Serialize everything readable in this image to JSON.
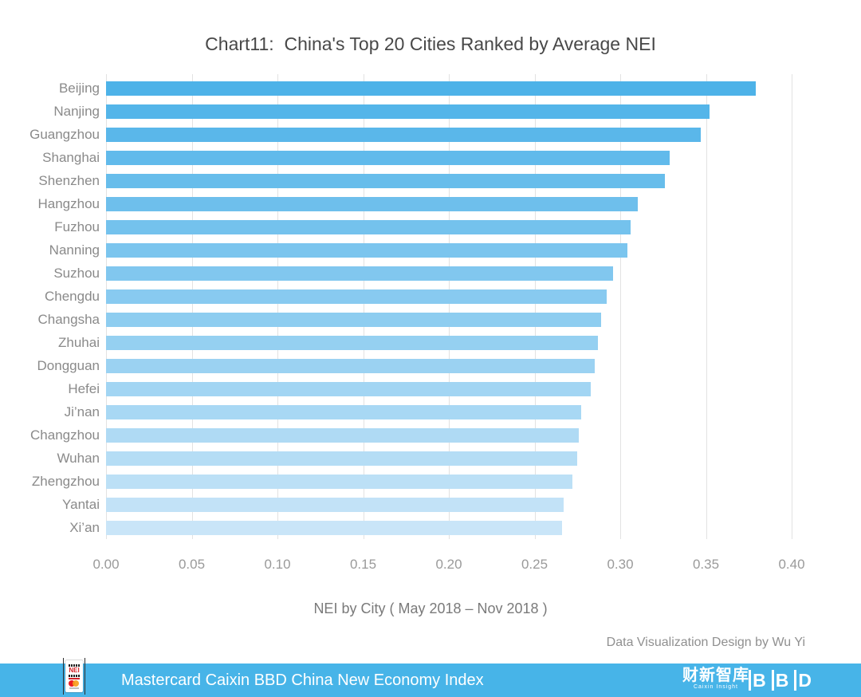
{
  "title": "Chart11:  China's Top 20 Cities Ranked by Average NEI",
  "subtitle": "NEI by City ( May 2018 – Nov 2018 )",
  "credit": "Data Visualization Design by Wu Yi",
  "footer": {
    "title": "Mastercard Caixin BBD China New Economy Index",
    "nei_logo_text": "NEI",
    "caixin_logo_text": "财新智库",
    "caixin_logo_subtext": "Caixin Insight",
    "bbd_logo_text": "BBD"
  },
  "colors": {
    "title_text": "#484848",
    "category_label": "#8a8a8a",
    "tick_label": "#9a9a9a",
    "gridline": "#e2e2e2",
    "footer_background": "#47b4e8",
    "footer_text": "#ffffff",
    "bar_color_top": "#4db2e8",
    "bar_color_bottom": "#c9e5f8"
  },
  "chart_data": {
    "type": "bar",
    "orientation": "horizontal",
    "title": "Chart11:  China's Top 20 Cities Ranked by Average NEI",
    "xlabel": "NEI by City ( May 2018 – Nov 2018 )",
    "ylabel": "",
    "xlim": [
      0.0,
      0.4
    ],
    "grid": true,
    "categories": [
      "Beijing",
      "Nanjing",
      "Guangzhou",
      "Shanghai",
      "Shenzhen",
      "Hangzhou",
      "Fuzhou",
      "Nanning",
      "Suzhou",
      "Chengdu",
      "Changsha",
      "Zhuhai",
      "Dongguan",
      "Hefei",
      "Ji’nan",
      "Changzhou",
      "Wuhan",
      "Zhengzhou",
      "Yantai",
      "Xi’an"
    ],
    "values": [
      0.379,
      0.352,
      0.347,
      0.329,
      0.326,
      0.31,
      0.306,
      0.304,
      0.296,
      0.292,
      0.289,
      0.287,
      0.285,
      0.283,
      0.277,
      0.276,
      0.275,
      0.272,
      0.267,
      0.266
    ],
    "xticks": [
      0.0,
      0.05,
      0.1,
      0.15,
      0.2,
      0.25,
      0.3,
      0.35,
      0.4
    ],
    "xtick_labels": [
      "0.00",
      "0.05",
      "0.10",
      "0.15",
      "0.20",
      "0.25",
      "0.30",
      "0.35",
      "0.40"
    ],
    "bar_colors": [
      "#4db2e8",
      "#54b5e9",
      "#5ab7ea",
      "#61baeb",
      "#67bdeb",
      "#6ebfec",
      "#74c2ed",
      "#7bc5ee",
      "#81c7ef",
      "#88caf0",
      "#8ecdf0",
      "#95d0f1",
      "#9bd2f2",
      "#a2d5f3",
      "#a8d8f4",
      "#afdaf4",
      "#b5ddf5",
      "#bce0f6",
      "#c2e2f7",
      "#c9e5f8"
    ]
  }
}
